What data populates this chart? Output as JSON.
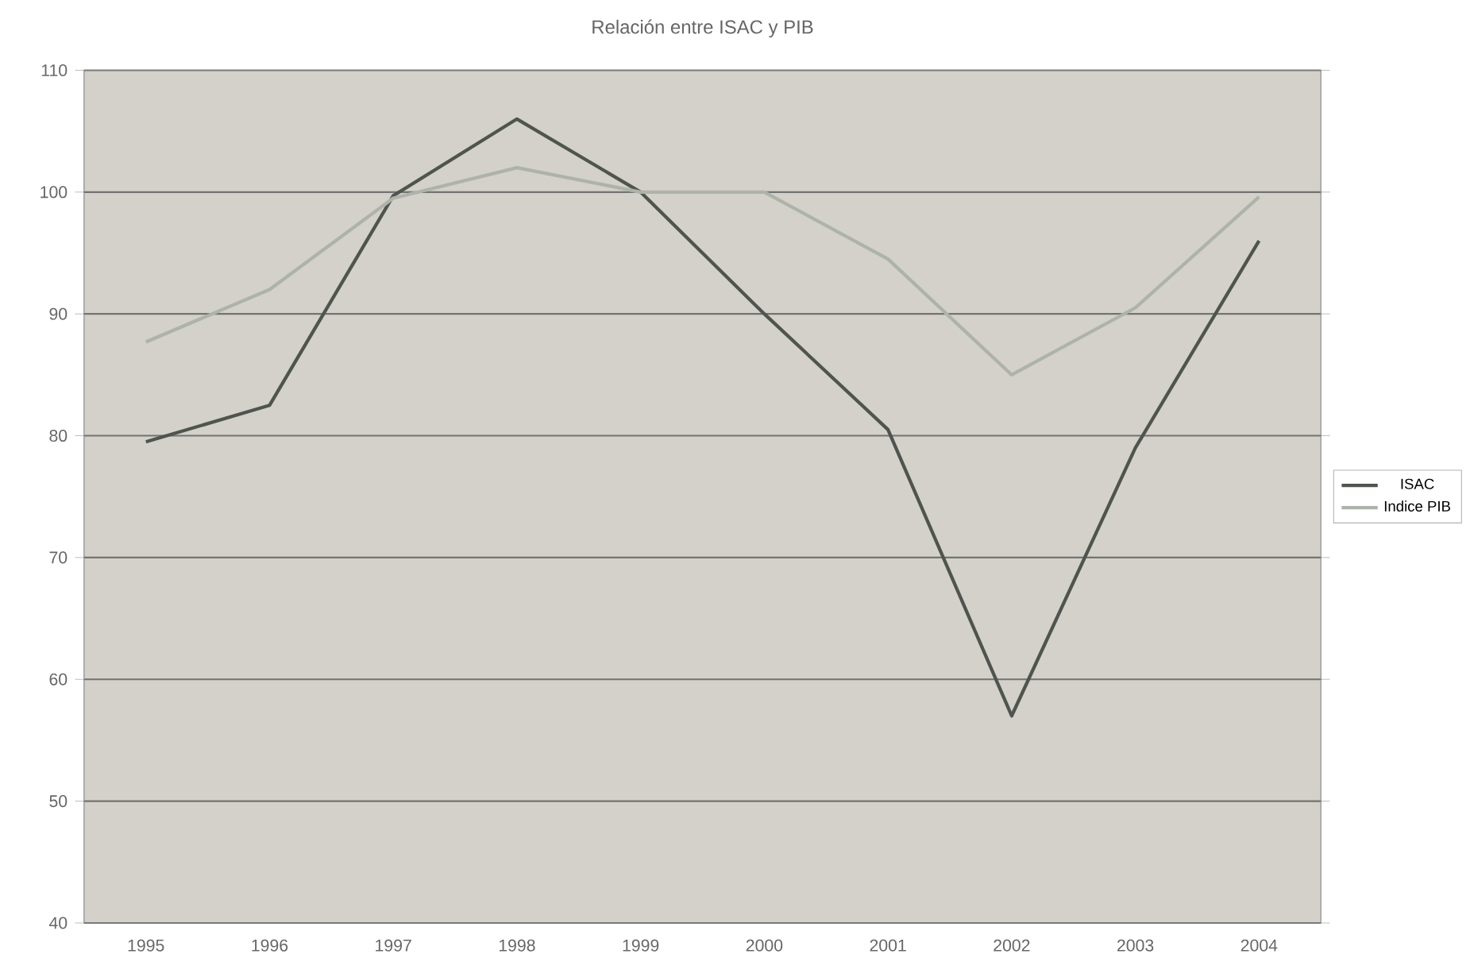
{
  "chart_data": {
    "type": "line",
    "title": "Relación entre ISAC y PIB",
    "categories": [
      "1995",
      "1996",
      "1997",
      "1998",
      "1999",
      "2000",
      "2001",
      "2002",
      "2003",
      "2004"
    ],
    "series": [
      {
        "name": "ISAC",
        "color": "#4f544f",
        "values": [
          79.5,
          82.5,
          99.7,
          106,
          100,
          90,
          80.5,
          57,
          79,
          96
        ]
      },
      {
        "name": "Indice PIB",
        "color": "#aeb3aa",
        "values": [
          87.7,
          92,
          99.5,
          102,
          100,
          100,
          94.5,
          85,
          90.5,
          99.6
        ]
      }
    ],
    "ylim": [
      40,
      110
    ],
    "yticks": [
      40,
      50,
      60,
      70,
      80,
      90,
      100,
      110
    ],
    "grid": "y",
    "legend": "right",
    "marker": "none",
    "line_style": "solid"
  }
}
